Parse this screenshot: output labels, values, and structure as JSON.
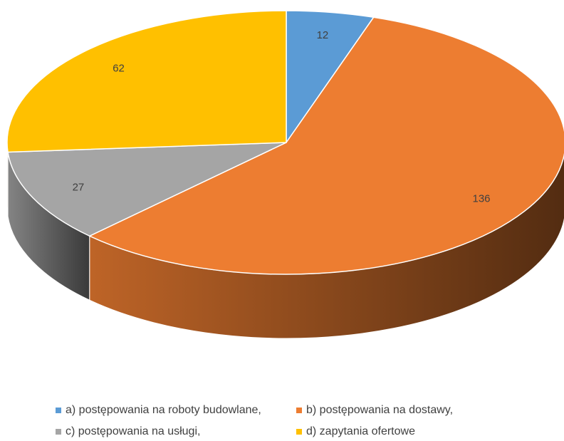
{
  "chart_data": {
    "type": "pie",
    "categories": [
      "a) postępowania na roboty budowlane,",
      "b) postępowania na dostawy,",
      "c) postępowania na usługi,",
      "d) zapytania ofertowe"
    ],
    "values": [
      12,
      136,
      27,
      62
    ],
    "colors": [
      "#5b9bd5",
      "#ed7d31",
      "#a5a5a5",
      "#ffc000"
    ],
    "legend": "bottom"
  }
}
